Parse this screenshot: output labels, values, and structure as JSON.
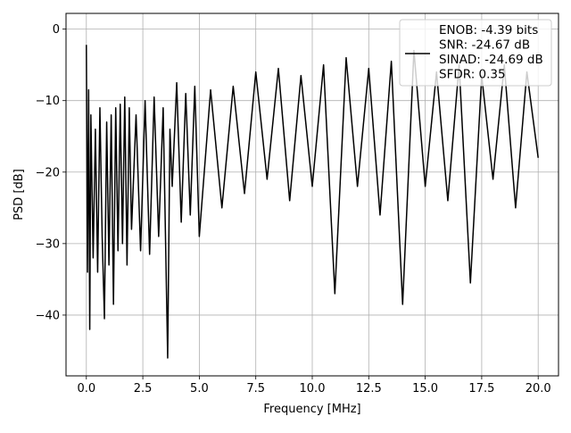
{
  "chart_data": {
    "type": "line",
    "title": "",
    "xlabel": "Frequency [MHz]",
    "ylabel": "PSD [dB]",
    "xlim": [
      -0.9,
      20.9
    ],
    "ylim": [
      -48.5,
      2.2
    ],
    "xticks": [
      0.0,
      2.5,
      5.0,
      7.5,
      10.0,
      12.5,
      15.0,
      17.5,
      20.0
    ],
    "xtick_labels": [
      "0.0",
      "2.5",
      "5.0",
      "7.5",
      "10.0",
      "12.5",
      "15.0",
      "17.5",
      "20.0"
    ],
    "yticks": [
      0,
      -10,
      -20,
      -30,
      -40
    ],
    "ytick_labels": [
      "0",
      "−10",
      "−20",
      "−30",
      "−40"
    ],
    "grid": true,
    "legend_position": "top-right",
    "legend_lines": [
      "ENOB: -4.39 bits",
      "SNR: -24.67 dB",
      "SINAD: -24.69 dB",
      "SFDR: 0.35"
    ],
    "series": [
      {
        "color": "#000000",
        "x": [
          0.0,
          0.05,
          0.1,
          0.15,
          0.2,
          0.3,
          0.4,
          0.5,
          0.6,
          0.7,
          0.8,
          0.9,
          1.0,
          1.1,
          1.2,
          1.3,
          1.4,
          1.5,
          1.6,
          1.7,
          1.8,
          1.9,
          2.0,
          2.2,
          2.4,
          2.6,
          2.8,
          3.0,
          3.2,
          3.4,
          3.6,
          3.7,
          3.8,
          4.0,
          4.2,
          4.4,
          4.6,
          4.8,
          5.0,
          5.5,
          6.0,
          6.5,
          7.0,
          7.5,
          8.0,
          8.5,
          9.0,
          9.5,
          10.0,
          10.5,
          11.0,
          11.5,
          12.0,
          12.5,
          13.0,
          13.5,
          14.0,
          14.5,
          15.0,
          15.5,
          16.0,
          16.5,
          17.0,
          17.5,
          18.0,
          18.5,
          19.0,
          19.5,
          20.0
        ],
        "y": [
          -2.2,
          -34.0,
          -8.5,
          -42.0,
          -12.0,
          -32.0,
          -14.0,
          -34.0,
          -11.0,
          -29.0,
          -40.5,
          -13.0,
          -33.0,
          -12.0,
          -38.5,
          -11.0,
          -31.0,
          -10.5,
          -30.0,
          -9.5,
          -33.0,
          -11.0,
          -28.0,
          -12.0,
          -31.0,
          -10.0,
          -31.5,
          -9.5,
          -29.0,
          -11.0,
          -46.0,
          -14.0,
          -22.0,
          -7.5,
          -27.0,
          -9.0,
          -26.0,
          -8.0,
          -29.0,
          -8.5,
          -25.0,
          -8.0,
          -23.0,
          -6.0,
          -21.0,
          -5.5,
          -24.0,
          -6.5,
          -22.0,
          -5.0,
          -37.0,
          -4.0,
          -22.0,
          -5.5,
          -26.0,
          -4.5,
          -38.5,
          -3.0,
          -22.0,
          -6.0,
          -24.0,
          -5.0,
          -35.5,
          -6.5,
          -21.0,
          -5.0,
          -25.0,
          -6.0,
          -18.0
        ]
      }
    ]
  }
}
